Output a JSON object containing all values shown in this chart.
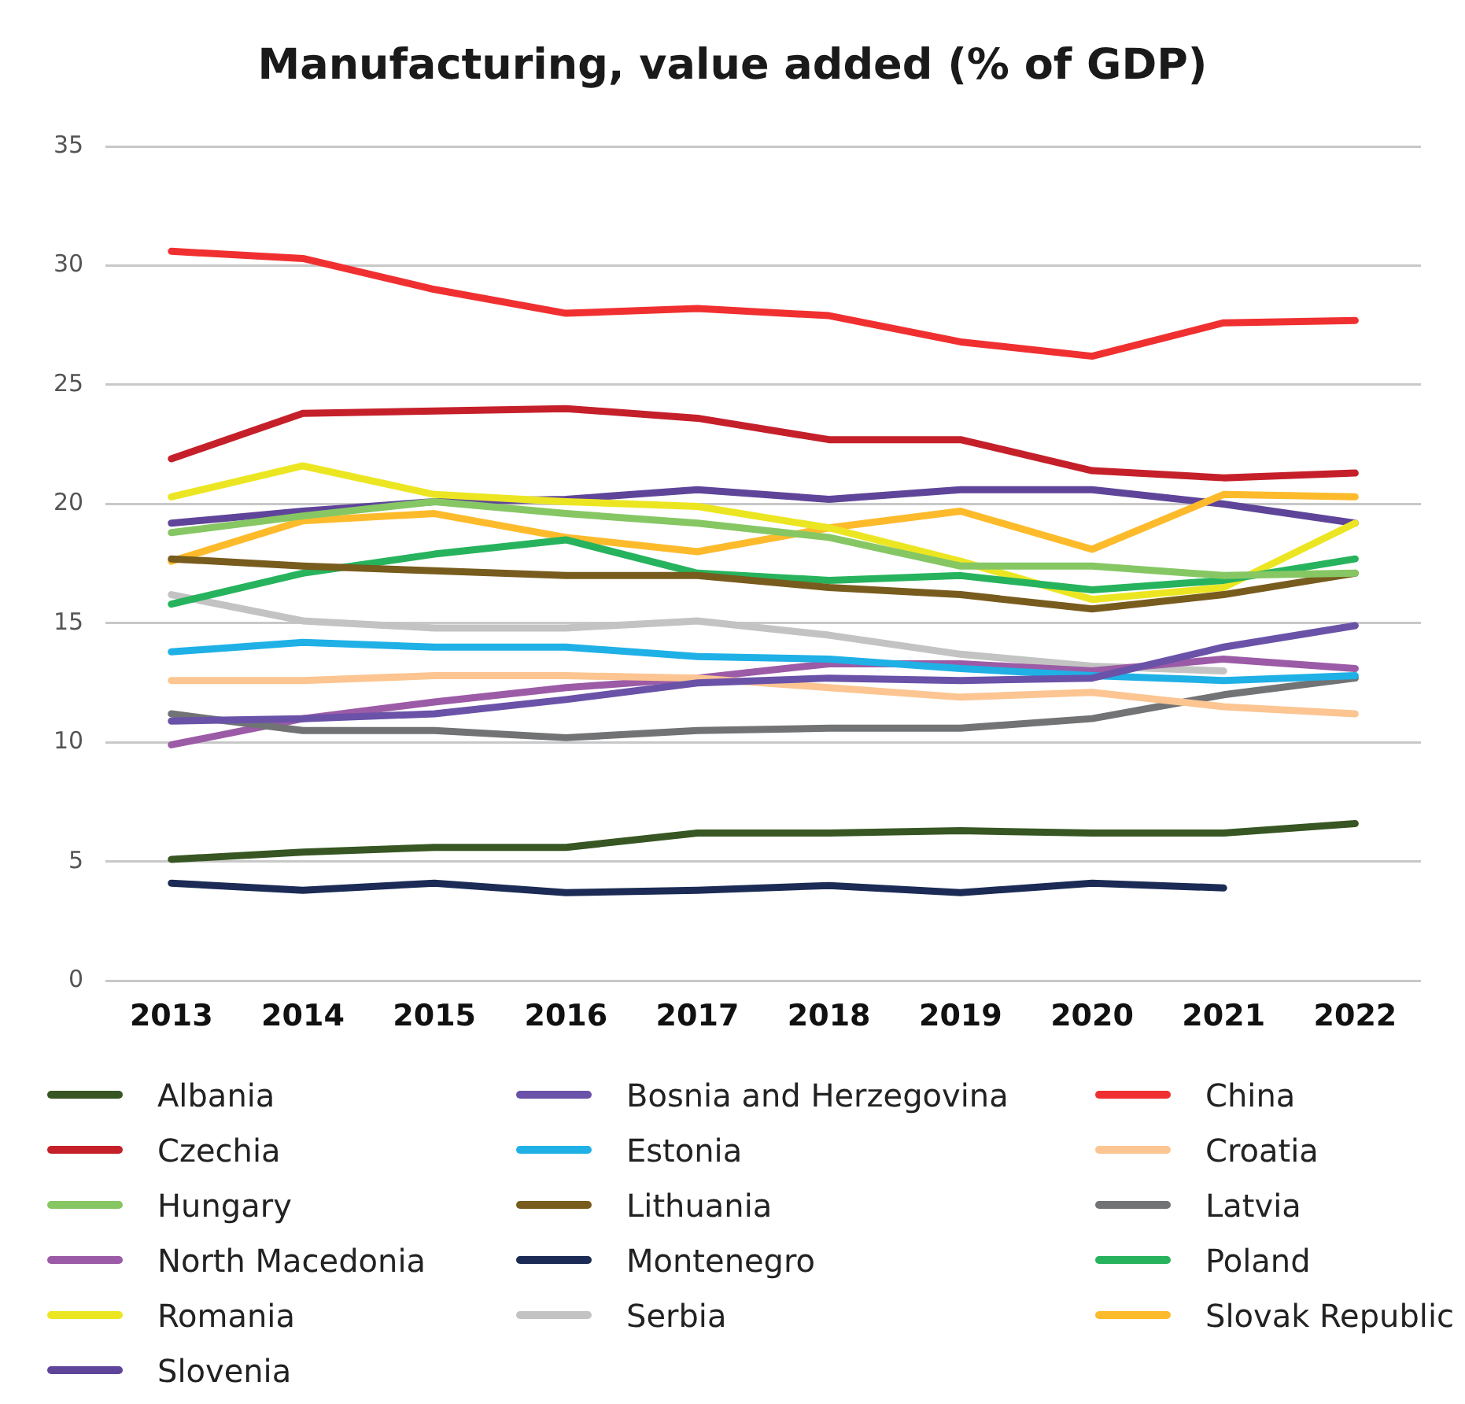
{
  "chart_data": {
    "type": "line",
    "title": "Manufacturing, value added (% of GDP)",
    "categories": [
      "2013",
      "2014",
      "2015",
      "2016",
      "2017",
      "2018",
      "2019",
      "2020",
      "2021",
      "2022"
    ],
    "ylim": [
      0,
      35
    ],
    "yticks": [
      0,
      5,
      10,
      15,
      20,
      25,
      30,
      35
    ],
    "grid": "y",
    "legend": "bottom",
    "marker": "none",
    "line_style": "solid",
    "series": [
      {
        "name": "Albania",
        "color": "#375623",
        "values": [
          5.1,
          5.4,
          5.6,
          5.6,
          6.2,
          6.2,
          6.3,
          6.2,
          6.2,
          6.6
        ]
      },
      {
        "name": "Bosnia and Herzegovina",
        "color": "#6a52a8",
        "values": [
          10.9,
          11.0,
          11.2,
          11.8,
          12.5,
          12.7,
          12.6,
          12.7,
          14.0,
          14.9
        ]
      },
      {
        "name": "China",
        "color": "#f03030",
        "values": [
          30.6,
          30.3,
          29.0,
          28.0,
          28.2,
          27.9,
          26.8,
          26.2,
          27.6,
          27.7
        ]
      },
      {
        "name": "Czechia",
        "color": "#c5202a",
        "values": [
          21.9,
          23.8,
          23.9,
          24.0,
          23.6,
          22.7,
          22.7,
          21.4,
          21.1,
          21.3
        ]
      },
      {
        "name": "Estonia",
        "color": "#1fb0e6",
        "values": [
          13.8,
          14.2,
          14.0,
          14.0,
          13.6,
          13.5,
          13.1,
          12.8,
          12.6,
          12.8
        ]
      },
      {
        "name": "Croatia",
        "color": "#fcc592",
        "values": [
          12.6,
          12.6,
          12.8,
          12.8,
          12.7,
          12.3,
          11.9,
          12.1,
          11.5,
          11.2
        ]
      },
      {
        "name": "Hungary",
        "color": "#86c764",
        "values": [
          18.8,
          19.5,
          20.1,
          19.6,
          19.2,
          18.6,
          17.4,
          17.4,
          17.0,
          17.1
        ]
      },
      {
        "name": "Lithuania",
        "color": "#785c1e",
        "values": [
          17.7,
          17.4,
          17.2,
          17.0,
          17.0,
          16.5,
          16.2,
          15.6,
          16.2,
          17.1
        ]
      },
      {
        "name": "Latvia",
        "color": "#717375",
        "values": [
          11.2,
          10.5,
          10.5,
          10.2,
          10.5,
          10.6,
          10.6,
          11.0,
          12.0,
          12.7
        ]
      },
      {
        "name": "North Macedonia",
        "color": "#9c5ba6",
        "values": [
          9.9,
          11.0,
          11.7,
          12.3,
          12.7,
          13.3,
          13.3,
          13.0,
          13.5,
          13.1
        ]
      },
      {
        "name": "Montenegro",
        "color": "#1b2b55",
        "values": [
          4.1,
          3.8,
          4.1,
          3.7,
          3.8,
          4.0,
          3.7,
          4.1,
          3.9,
          null
        ]
      },
      {
        "name": "Poland",
        "color": "#27b35d",
        "values": [
          15.8,
          17.1,
          17.9,
          18.5,
          17.1,
          16.8,
          17.0,
          16.4,
          16.8,
          17.7
        ]
      },
      {
        "name": "Romania",
        "color": "#ece622",
        "values": [
          20.3,
          21.6,
          20.4,
          20.1,
          19.9,
          19.0,
          17.6,
          16.0,
          16.5,
          19.2
        ]
      },
      {
        "name": "Serbia",
        "color": "#c3c3c3",
        "values": [
          16.2,
          15.1,
          14.8,
          14.8,
          15.1,
          14.5,
          13.7,
          13.2,
          13.0,
          null
        ]
      },
      {
        "name": "Slovak Republic",
        "color": "#fdbb2c",
        "values": [
          17.6,
          19.3,
          19.6,
          18.6,
          18.0,
          19.0,
          19.7,
          18.1,
          20.4,
          20.3
        ]
      },
      {
        "name": "Slovenia",
        "color": "#5f4599",
        "values": [
          19.2,
          19.7,
          20.1,
          20.2,
          20.6,
          20.2,
          20.6,
          20.6,
          20.0,
          19.2
        ]
      }
    ]
  }
}
